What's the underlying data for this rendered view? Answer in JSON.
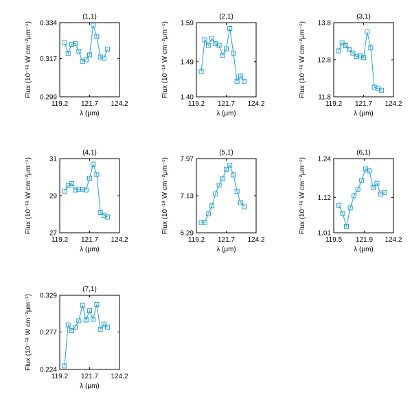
{
  "style": {
    "line_color": "#1f9fd7",
    "axis_color": "#000000",
    "background": "#ffffff"
  },
  "labels": {
    "xlabel": "λ (μm)",
    "ylabel": "Flux (10⁻¹⁸ W cm⁻²μm⁻¹)"
  },
  "chart_data": [
    {
      "type": "line",
      "marker": "square",
      "grid": false,
      "title": "(1,1)",
      "xlim": [
        119.2,
        124.2
      ],
      "ylim": [
        0.299,
        0.334
      ],
      "xticks": [
        "119.2",
        "121.7",
        "124.2"
      ],
      "yticks": [
        "0.299",
        "0.317",
        "0.334"
      ],
      "xlabel": "λ (μm)",
      "ylabel": "Flux (10⁻¹⁸ W cm⁻²μm⁻¹)",
      "x": [
        119.6,
        119.9,
        120.2,
        120.5,
        120.8,
        121.1,
        121.4,
        121.7,
        122.0,
        122.3,
        122.6,
        122.9,
        123.2
      ],
      "y": [
        0.3245,
        0.3195,
        0.3238,
        0.3242,
        0.3205,
        0.3158,
        0.3165,
        0.3188,
        0.3328,
        0.3275,
        0.3178,
        0.3172,
        0.3215
      ]
    },
    {
      "type": "line",
      "marker": "square",
      "grid": false,
      "title": "(2,1)",
      "xlim": [
        119.2,
        124.2
      ],
      "ylim": [
        1.4,
        1.59
      ],
      "xticks": [
        "119.2",
        "121.7",
        "124.2"
      ],
      "yticks": [
        "1.40",
        "1.49",
        "1.59"
      ],
      "xlabel": "λ (μm)",
      "ylabel": "Flux (10⁻¹⁸ W cm⁻²μm⁻¹)",
      "x": [
        119.6,
        119.9,
        120.2,
        120.5,
        120.8,
        121.1,
        121.4,
        121.7,
        122.0,
        122.3,
        122.6,
        122.9,
        123.2
      ],
      "y": [
        1.464,
        1.546,
        1.532,
        1.55,
        1.536,
        1.532,
        1.506,
        1.523,
        1.575,
        1.512,
        1.44,
        1.453,
        1.44
      ]
    },
    {
      "type": "line",
      "marker": "square",
      "grid": false,
      "title": "(3,1)",
      "xlim": [
        119.2,
        124.2
      ],
      "ylim": [
        11.8,
        13.8
      ],
      "xticks": [
        "119.2",
        "121.7",
        "124.2"
      ],
      "yticks": [
        "11.8",
        "12.8",
        "13.8"
      ],
      "xlabel": "λ (μm)",
      "ylabel": "Flux (10⁻¹⁸ W cm⁻²μm⁻¹)",
      "x": [
        119.6,
        119.9,
        120.2,
        120.5,
        120.8,
        121.1,
        121.4,
        121.7,
        122.0,
        122.3,
        122.6,
        122.9,
        123.2
      ],
      "y": [
        13.04,
        13.25,
        13.18,
        13.07,
        12.98,
        12.88,
        12.91,
        12.86,
        13.55,
        13.12,
        12.06,
        12.02,
        11.98
      ]
    },
    {
      "type": "line",
      "marker": "square",
      "grid": false,
      "title": "(4,1)",
      "xlim": [
        119.2,
        124.2
      ],
      "ylim": [
        27,
        31
      ],
      "xticks": [
        "119.2",
        "121.7",
        "124.2"
      ],
      "yticks": [
        "27",
        "29",
        "31"
      ],
      "xlabel": "λ (μm)",
      "ylabel": "Flux (10⁻¹⁸ W cm⁻²μm⁻¹)",
      "x": [
        119.6,
        119.9,
        120.2,
        120.5,
        120.8,
        121.1,
        121.4,
        121.7,
        122.0,
        122.3,
        122.6,
        122.9,
        123.2
      ],
      "y": [
        29.25,
        29.55,
        29.65,
        29.3,
        29.35,
        29.35,
        29.3,
        29.95,
        30.7,
        30.15,
        28.1,
        27.95,
        27.85
      ]
    },
    {
      "type": "line",
      "marker": "square",
      "grid": false,
      "title": "(5,1)",
      "xlim": [
        119.2,
        124.2
      ],
      "ylim": [
        6.29,
        7.97
      ],
      "xticks": [
        "119.2",
        "121.7",
        "124.2"
      ],
      "yticks": [
        "6.29",
        "7.13",
        "7.97"
      ],
      "xlabel": "λ (μm)",
      "ylabel": "Flux (10⁻¹⁸ W cm⁻²μm⁻¹)",
      "x": [
        119.6,
        119.9,
        120.2,
        120.5,
        120.8,
        121.1,
        121.4,
        121.7,
        122.0,
        122.3,
        122.6,
        122.9,
        123.2
      ],
      "y": [
        6.52,
        6.53,
        6.72,
        6.9,
        7.17,
        7.37,
        7.52,
        7.73,
        7.82,
        7.6,
        7.23,
        6.97,
        6.88
      ]
    },
    {
      "type": "line",
      "marker": "square",
      "grid": false,
      "title": "(6,1)",
      "xlim": [
        119.5,
        124.2
      ],
      "ylim": [
        1.01,
        1.24
      ],
      "xticks": [
        "119.5",
        "121.9",
        "124.2"
      ],
      "yticks": [
        "1.01",
        "1.12",
        "1.24"
      ],
      "xlabel": "λ (μm)",
      "ylabel": "Flux (10⁻¹⁸ W cm⁻²μm⁻¹)",
      "x": [
        119.9,
        120.2,
        120.5,
        120.8,
        121.1,
        121.4,
        121.7,
        122.0,
        122.3,
        122.6,
        122.9,
        123.2,
        123.5
      ],
      "y": [
        1.095,
        1.07,
        1.03,
        1.087,
        1.125,
        1.145,
        1.172,
        1.208,
        1.202,
        1.15,
        1.163,
        1.13,
        1.135
      ]
    },
    {
      "type": "line",
      "marker": "square",
      "grid": false,
      "title": "(7,1)",
      "xlim": [
        119.2,
        124.2
      ],
      "ylim": [
        0.224,
        0.329
      ],
      "xticks": [
        "119.2",
        "121.7",
        "124.2"
      ],
      "yticks": [
        "0.224",
        "0.277",
        "0.329"
      ],
      "xlabel": "λ (μm)",
      "ylabel": "Flux (10⁻¹⁸ W cm⁻²μm⁻¹)",
      "x": [
        119.6,
        119.9,
        120.2,
        120.5,
        120.8,
        121.1,
        121.4,
        121.7,
        122.0,
        122.3,
        122.6,
        122.9,
        123.2
      ],
      "y": [
        0.229,
        0.287,
        0.279,
        0.284,
        0.293,
        0.315,
        0.294,
        0.307,
        0.295,
        0.316,
        0.281,
        0.288,
        0.284
      ]
    }
  ]
}
